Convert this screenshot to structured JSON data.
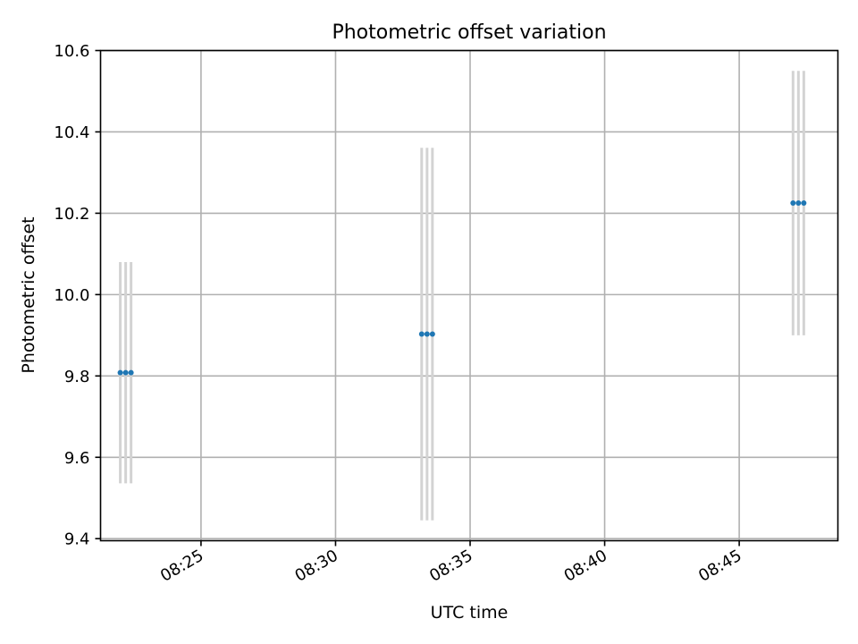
{
  "chart_data": {
    "type": "scatter",
    "title": "Photometric offset variation",
    "xlabel": "UTC time",
    "ylabel": "Photometric offset",
    "xlim": [
      "08:21:16",
      "08:48:40"
    ],
    "ylim": [
      9.395,
      10.6
    ],
    "grid": true,
    "xticks": [
      "08:25",
      "08:30",
      "08:35",
      "08:40",
      "08:45"
    ],
    "yticks": [
      9.4,
      9.6,
      9.8,
      10.0,
      10.2,
      10.4,
      10.6
    ],
    "yticklabels": [
      "9.4",
      "9.6",
      "9.8",
      "10.0",
      "10.2",
      "10.4",
      "10.6"
    ],
    "colors": {
      "points": "#1f77b4",
      "errorbars": "#d3d3d3"
    },
    "series": [
      {
        "x": [
          "08:22:00",
          "08:22:12",
          "08:22:24",
          "08:33:12",
          "08:33:24",
          "08:33:36",
          "08:47:00",
          "08:47:12",
          "08:47:24"
        ],
        "y": [
          9.808,
          9.808,
          9.808,
          9.903,
          9.903,
          9.903,
          10.225,
          10.225,
          10.225
        ],
        "yerr": [
          0.272,
          0.272,
          0.272,
          0.458,
          0.458,
          0.458,
          0.325,
          0.325,
          0.325
        ]
      }
    ]
  }
}
